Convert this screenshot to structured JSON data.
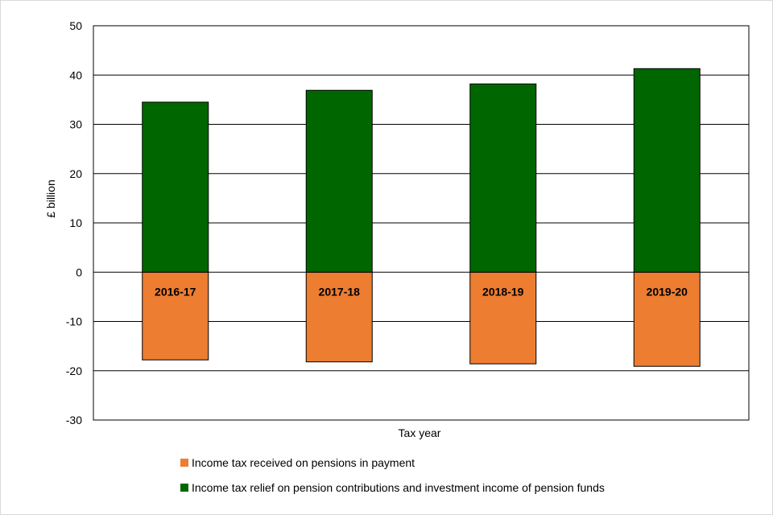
{
  "chart_data": {
    "type": "bar",
    "stacked": true,
    "title": "",
    "xlabel": "Tax year",
    "ylabel": "£ billion",
    "ylim": [
      -30,
      50
    ],
    "yticks": [
      50,
      40,
      30,
      20,
      10,
      0,
      -10,
      -20,
      -30
    ],
    "grid": true,
    "legend_position": "bottom",
    "categories": [
      "2016-17",
      "2017-18",
      "2018-19",
      "2019-20"
    ],
    "series": [
      {
        "name": "Income tax received on pensions in payment",
        "color": "#ED7D31",
        "values": [
          -17.8,
          -18.2,
          -18.6,
          -19.1
        ]
      },
      {
        "name": "Income tax relief on pension contributions and investment income of pension funds",
        "color": "#006600",
        "values": [
          34.5,
          36.9,
          38.2,
          41.3
        ]
      }
    ]
  }
}
